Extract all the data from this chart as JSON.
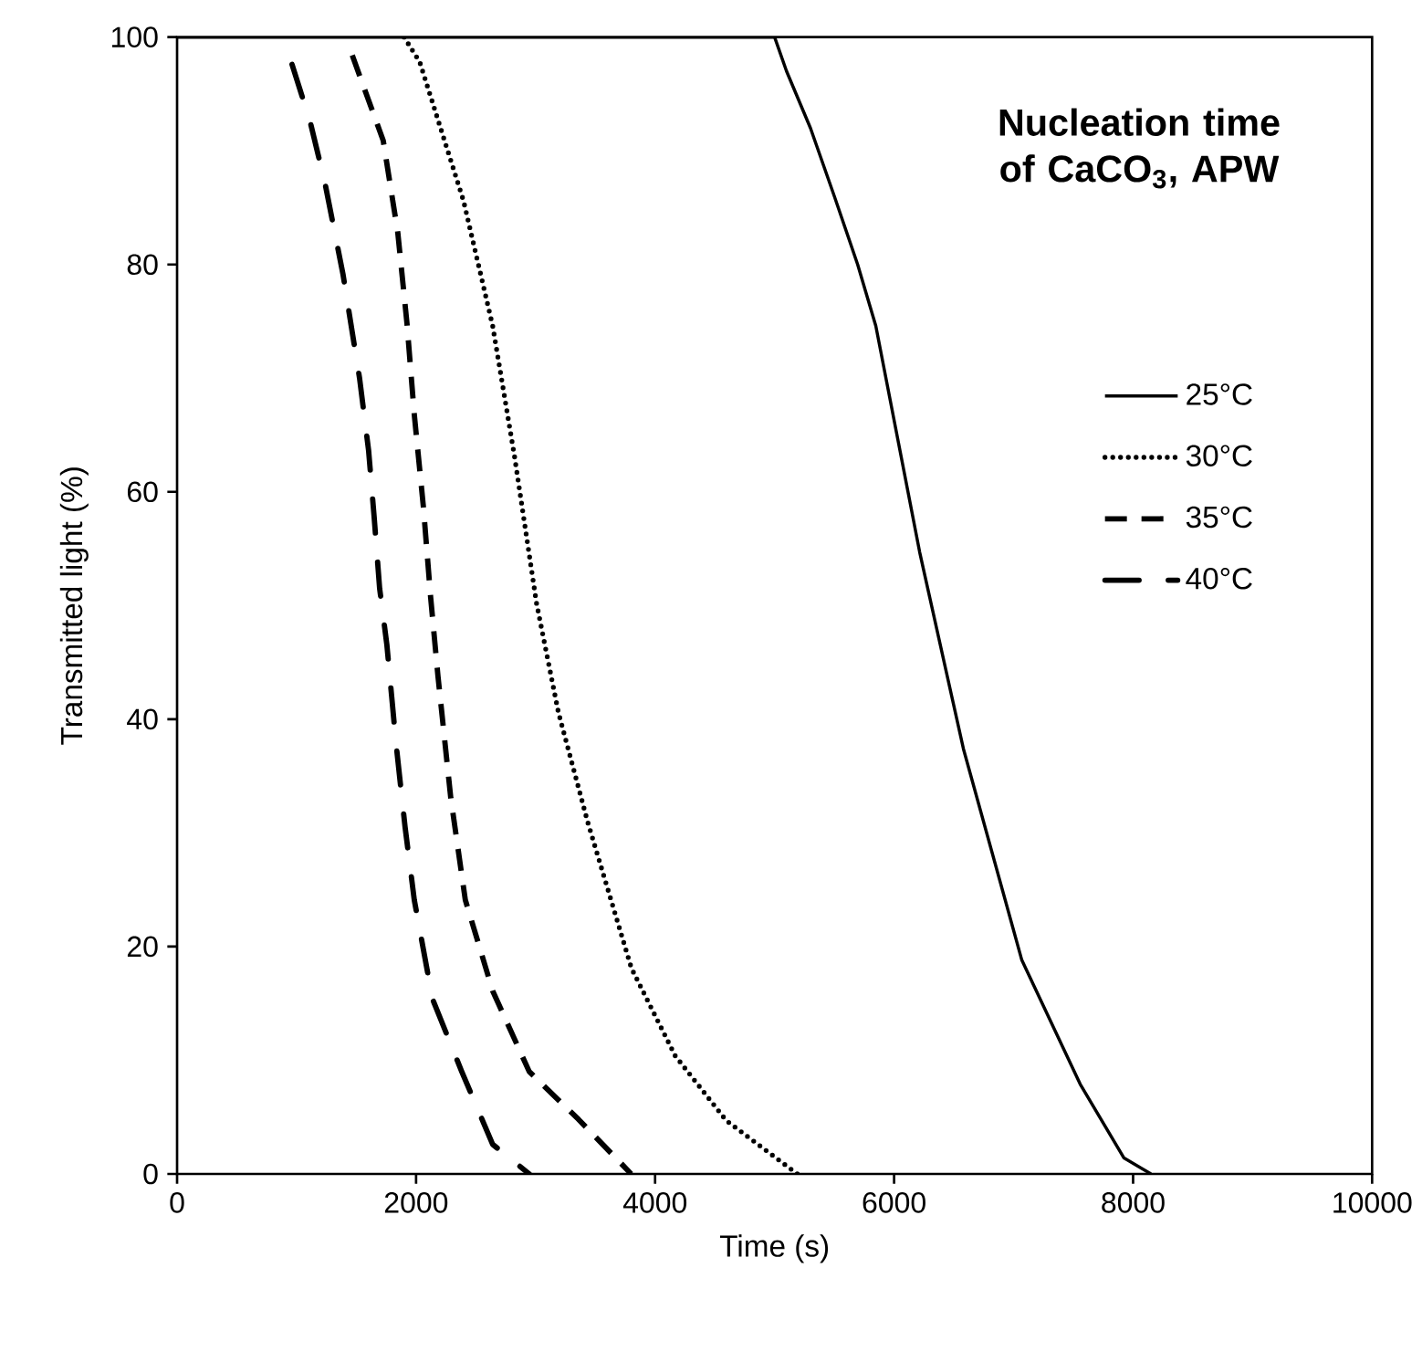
{
  "chart_data": {
    "type": "line",
    "title": "Nucleation time of CaCO$_{3}$, APW",
    "xlabel": "Time (s)",
    "ylabel": "Transmitted light (%)",
    "xlim": [
      0,
      10000
    ],
    "ylim": [
      0,
      100
    ],
    "xticks": [
      0,
      2000,
      4000,
      6000,
      8000,
      10000
    ],
    "yticks": [
      0,
      20,
      40,
      60,
      80,
      100
    ],
    "grid": false,
    "legend": "right",
    "marker": "none",
    "series": [
      {
        "name": "25°C",
        "color": "#000000",
        "line_style": "solid",
        "x": [
          0,
          1000,
          2000,
          3000,
          4000,
          5000,
          5100,
          5300,
          5500,
          5695,
          5847,
          6214,
          6580,
          7069,
          7557,
          7924,
          8150
        ],
        "values": [
          100,
          100,
          100,
          100,
          100,
          100,
          97,
          92,
          86,
          80,
          74.6,
          54.7,
          37.4,
          18.8,
          7.9,
          1.4,
          0
        ]
      },
      {
        "name": "30°C",
        "color": "#000000",
        "line_style": "dotted",
        "x": [
          1900,
          2031,
          2397,
          2641,
          2824,
          3008,
          3191,
          3435,
          3802,
          4168,
          4595,
          5190
        ],
        "values": [
          100,
          97.8,
          85.6,
          74.6,
          63.1,
          50.2,
          40.6,
          31,
          18.1,
          10.4,
          4.7,
          0
        ]
      },
      {
        "name": "35°C",
        "color": "#000000",
        "line_style": "dashed",
        "x": [
          1466,
          1725,
          1847,
          1924,
          1985,
          2061,
          2122,
          2183,
          2290,
          2412,
          2641,
          2947,
          3359,
          3800
        ],
        "values": [
          98.4,
          90.9,
          82.8,
          74.8,
          66.8,
          58.7,
          50.7,
          43.8,
          33.1,
          24.1,
          16.1,
          9,
          4.8,
          0
        ]
      },
      {
        "name": "40°C",
        "color": "#000000",
        "line_style": "dashdot",
        "x": [
          962,
          1115,
          1237,
          1389,
          1527,
          1603,
          1649,
          1695,
          1756,
          1832,
          1908,
          1985,
          2137,
          2382,
          2641,
          2947
        ],
        "values": [
          97.6,
          92.5,
          87.2,
          79.1,
          70,
          63.6,
          57.8,
          51.5,
          46.5,
          37.9,
          30.5,
          24.1,
          15.4,
          9,
          2.6,
          0
        ]
      }
    ]
  }
}
